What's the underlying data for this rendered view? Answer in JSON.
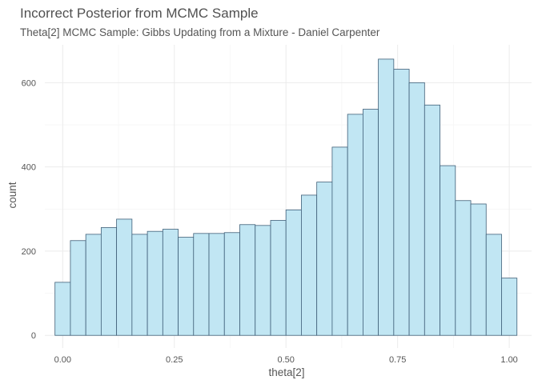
{
  "chart_data": {
    "type": "bar",
    "title": "Incorrect Posterior from MCMC Sample",
    "subtitle": "Theta[2] MCMC Sample: Gibbs Updating from a Mixture - Daniel Carpenter",
    "xlabel": "theta[2]",
    "ylabel": "count",
    "xlim": [
      -0.04,
      1.05
    ],
    "ylim": [
      -30,
      690
    ],
    "x_ticks": [
      0.0,
      0.25,
      0.5,
      0.75,
      1.0
    ],
    "x_tick_labels": [
      "0.00",
      "0.25",
      "0.50",
      "0.75",
      "1.00"
    ],
    "y_ticks": [
      0,
      200,
      400,
      600
    ],
    "y_tick_labels": [
      "0",
      "200",
      "400",
      "600"
    ],
    "grid": true,
    "bin_width": 0.0345,
    "bin_centers": [
      0.0,
      0.0345,
      0.069,
      0.1034,
      0.1379,
      0.1724,
      0.2069,
      0.2414,
      0.2759,
      0.3103,
      0.3448,
      0.3793,
      0.4138,
      0.4483,
      0.4828,
      0.5172,
      0.5517,
      0.5862,
      0.6207,
      0.6552,
      0.6897,
      0.7241,
      0.7586,
      0.7931,
      0.8276,
      0.8621,
      0.8966,
      0.931,
      0.9655,
      1.0
    ],
    "values": [
      126,
      225,
      240,
      256,
      276,
      240,
      247,
      252,
      233,
      242,
      242,
      244,
      263,
      261,
      273,
      298,
      333,
      364,
      447,
      525,
      537,
      656,
      632,
      600,
      547,
      403,
      320,
      312,
      240,
      136
    ],
    "colors": {
      "fill": "#c1e6f3",
      "outline": "#3f5f78"
    }
  }
}
